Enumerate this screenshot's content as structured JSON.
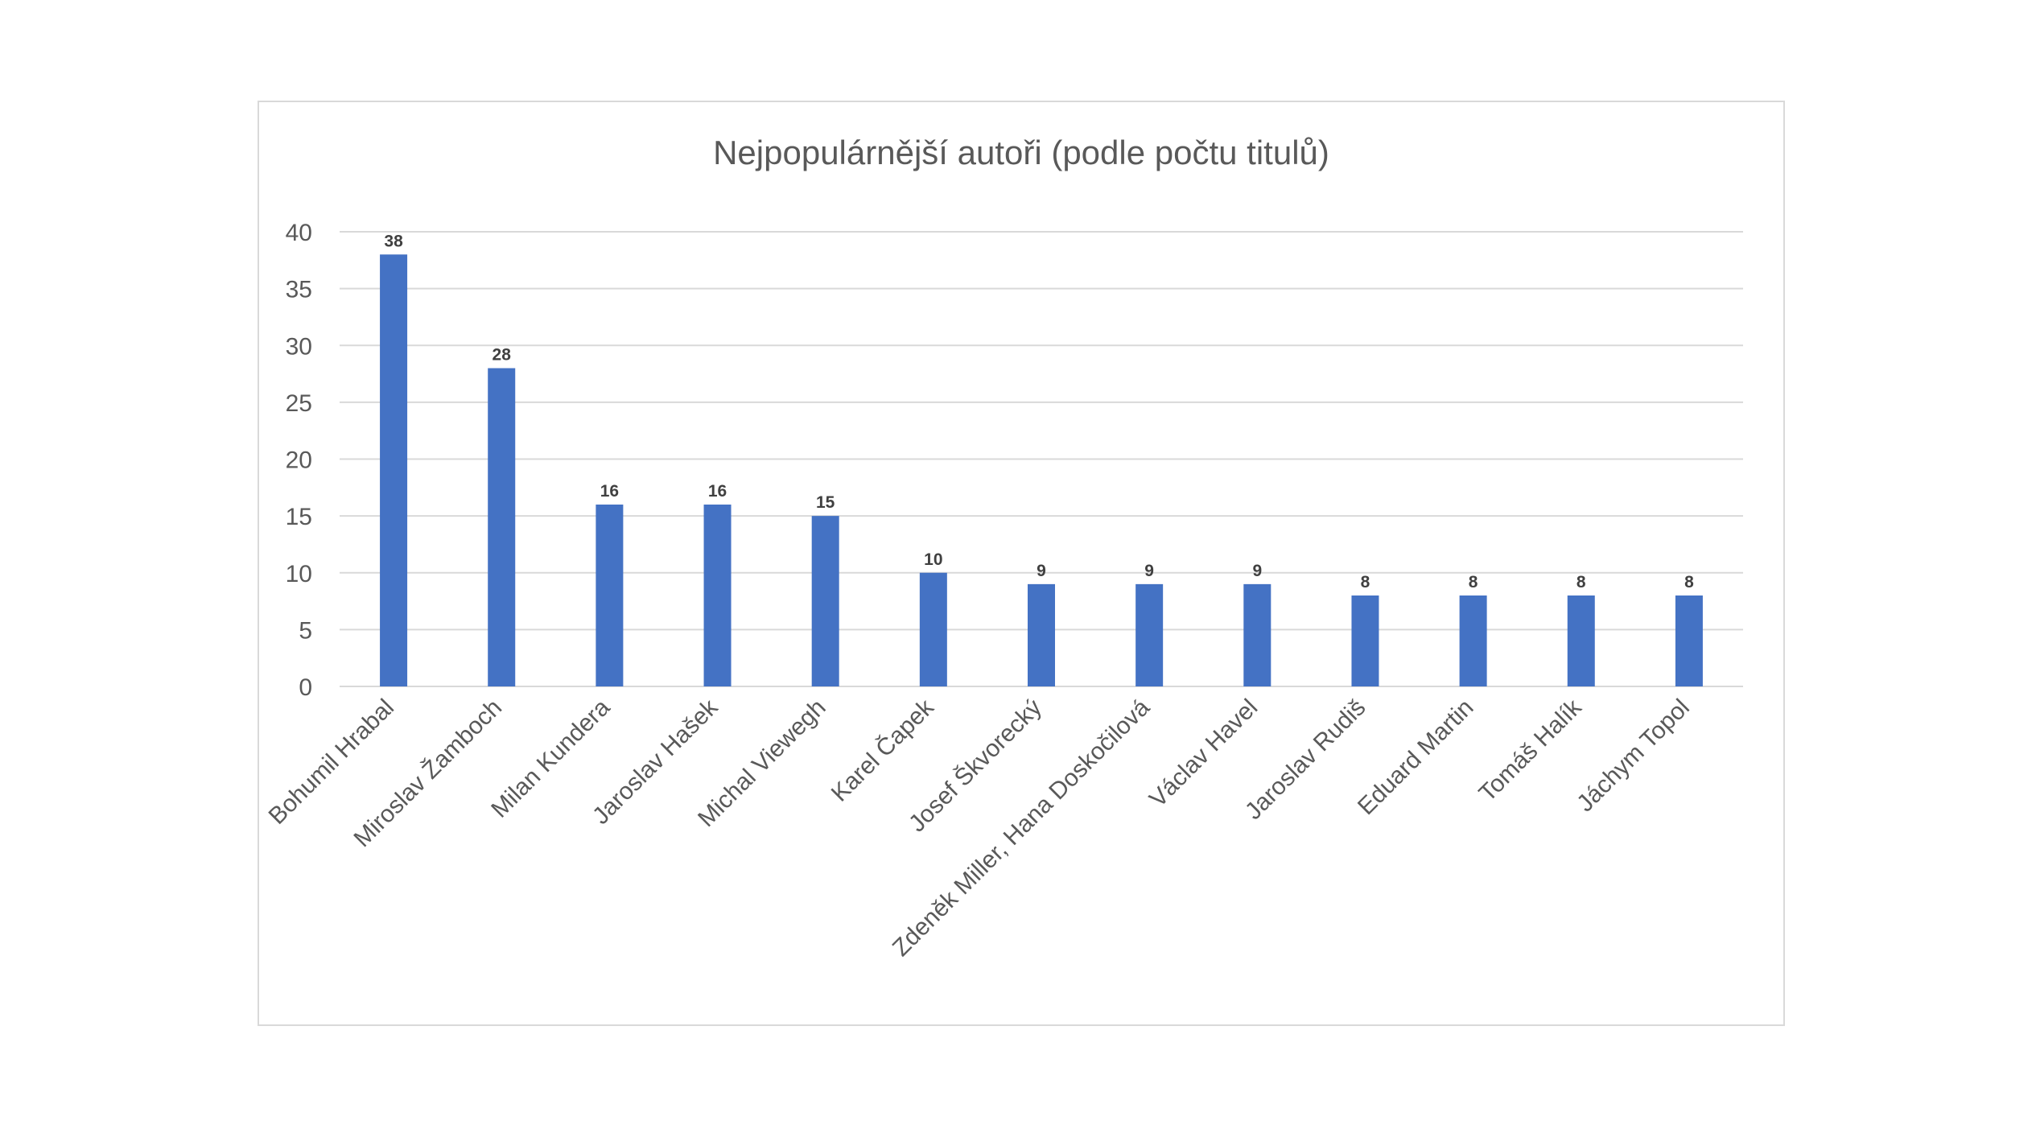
{
  "chart_data": {
    "type": "bar",
    "title": "Nejpopulárnější autoři (podle počtu titulů)",
    "xlabel": "",
    "ylabel": "",
    "ylim": [
      0,
      40
    ],
    "yticks": [
      0,
      5,
      10,
      15,
      20,
      25,
      30,
      35,
      40
    ],
    "grid": true,
    "legend": "none",
    "bar_color": "#4472c4",
    "categories": [
      "Bohumil Hrabal",
      "Miroslav Žamboch",
      "Milan Kundera",
      "Jaroslav Hašek",
      "Michal Viewegh",
      "Karel Čapek",
      "Josef Škvorecký",
      "Zdeněk Miller, Hana Doskočilová",
      "Václav Havel",
      "Jaroslav Rudiš",
      "Eduard Martin",
      "Tomáš Halík",
      "Jáchym Topol"
    ],
    "values": [
      38,
      28,
      16,
      16,
      15,
      10,
      9,
      9,
      9,
      8,
      8,
      8,
      8
    ]
  }
}
